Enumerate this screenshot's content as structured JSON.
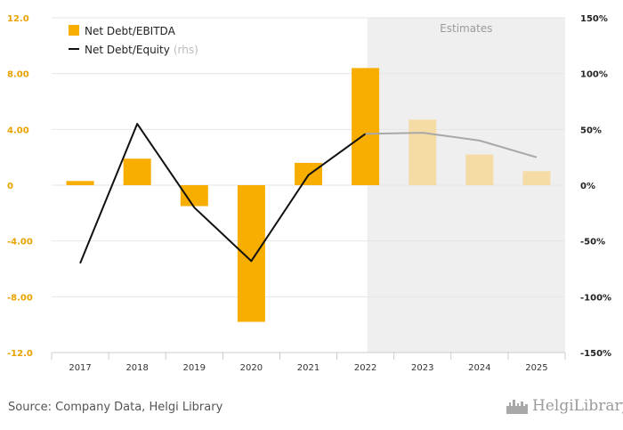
{
  "chart_data": {
    "type": "bar",
    "categories": [
      "2017",
      "2018",
      "2019",
      "2020",
      "2021",
      "2022",
      "2023",
      "2024",
      "2025"
    ],
    "estimates_start_index": 6,
    "estimates_label": "Estimates",
    "series": [
      {
        "name": "Net Debt/EBITDA",
        "kind": "bar",
        "axis": "left",
        "values": [
          0.3,
          1.9,
          -1.5,
          -9.8,
          1.6,
          8.4,
          4.7,
          2.2,
          1.0
        ]
      },
      {
        "name": "Net Debt/Equity",
        "name_suffix": "(rhs)",
        "kind": "line",
        "axis": "right",
        "values": [
          -70,
          55,
          -20,
          -68,
          9,
          46,
          47,
          40,
          25
        ]
      }
    ],
    "left_axis": {
      "ylim": [
        -12,
        12
      ],
      "ticks": [
        12,
        8,
        4,
        0,
        -4,
        -8,
        -12
      ],
      "tick_labels": [
        "12.0",
        "8.00",
        "4.00",
        "0",
        "-4.00",
        "-8.00",
        "-12.0"
      ]
    },
    "right_axis": {
      "ylim": [
        -150,
        150
      ],
      "ticks": [
        150,
        100,
        50,
        0,
        -50,
        -100,
        -150
      ],
      "tick_labels": [
        "150%",
        "100%",
        "50%",
        "0%",
        "-50%",
        "-100%",
        "-150%"
      ]
    },
    "grid": true,
    "legend": "top-left",
    "colors": {
      "bar": "#F7AE00",
      "bar_estimate": "#F5DCA6",
      "line": "#111111",
      "line_estimate": "#A8A8A8",
      "estimate_bg": "#EFEFEF",
      "left_tick": "#E8A200",
      "grid": "#E6E6E6"
    }
  },
  "footer": {
    "source": "Source: Company Data, Helgi Library",
    "brand": "HelgiLibrary",
    "brand_icon": "city-skyline-icon"
  }
}
